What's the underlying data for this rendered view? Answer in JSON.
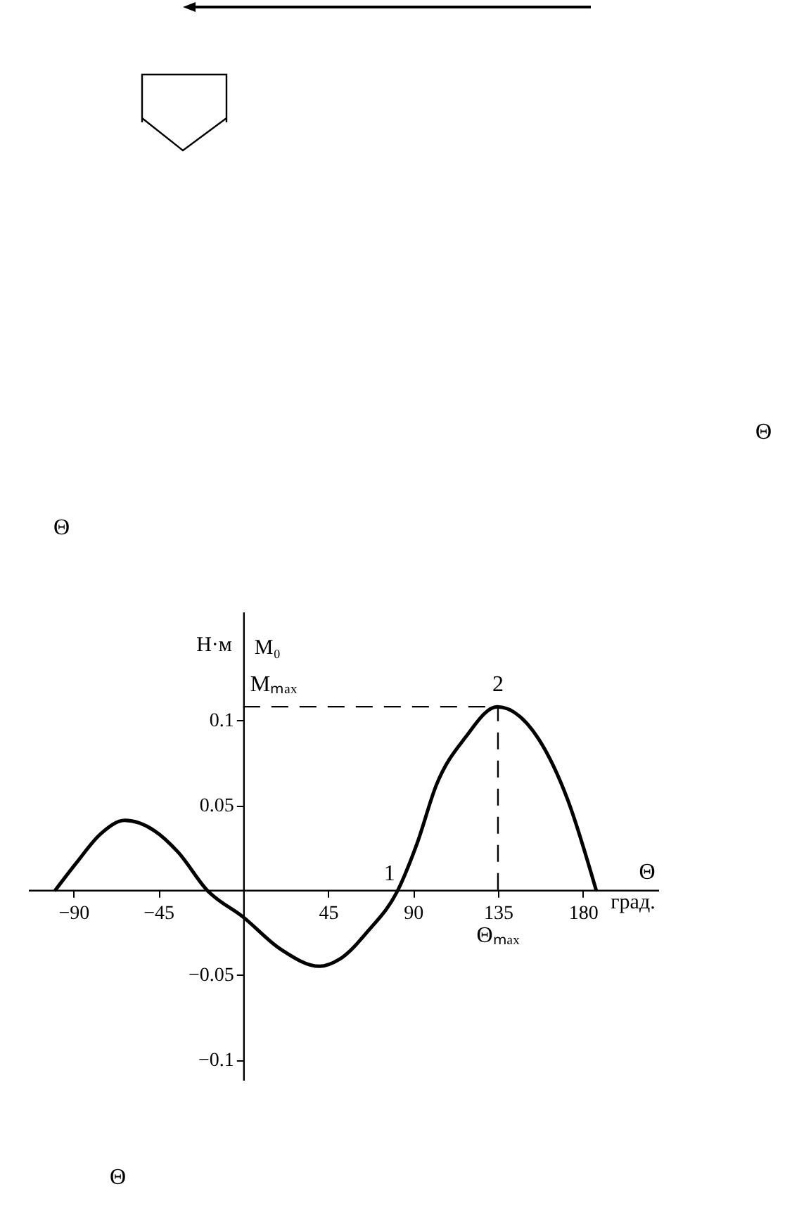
{
  "chart_data": {
    "type": "line",
    "xlabel": "Θ",
    "ylabel": "Н·м",
    "x": [
      -99.5,
      -88.4,
      -75.6,
      -62.7,
      -47.2,
      -34.3,
      -19.3,
      0,
      19.9,
      40.5,
      50.8,
      66.3,
      82,
      92,
      102.4,
      117.8,
      134.6,
      156.5,
      172,
      187
    ],
    "series": [
      {
        "color": "#000000",
        "values": [
          0,
          0.016,
          0.033,
          0.041,
          0.035,
          0.022,
          0,
          -0.016,
          -0.035,
          -0.045,
          -0.041,
          -0.024,
          0,
          0.027,
          0.062,
          0.09,
          0.108,
          0.089,
          0.053,
          0
        ]
      }
    ],
    "xlim": [
      -114,
      220
    ],
    "ylim": [
      -0.112,
      0.164
    ],
    "xticks": [
      -90,
      -45,
      45,
      90,
      135,
      180
    ],
    "yticks": [
      -0.1,
      -0.05,
      0.05,
      0.1
    ],
    "grid": false,
    "marker": "none",
    "line_style": "solid",
    "ref_lines": [
      {
        "axis": "y",
        "value": 0.108,
        "label": "Mₘₐₓ",
        "line_style": "dashed"
      },
      {
        "axis": "x",
        "value": 135,
        "label": "Θₘₐₓ",
        "line_style": "dashed"
      }
    ],
    "annotations": [
      "M₀",
      "град.",
      {
        "text": "1",
        "x": 82,
        "y": 0
      },
      {
        "text": "2",
        "x": 135,
        "y": 0.108
      },
      "Θ",
      "Θ",
      "Θ"
    ]
  }
}
